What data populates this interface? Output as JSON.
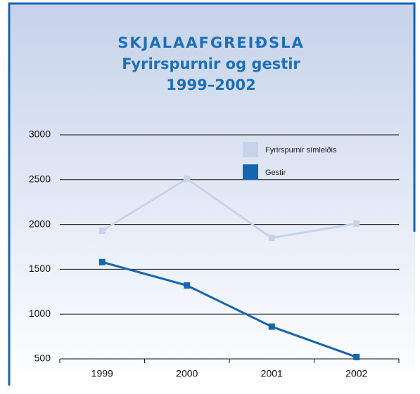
{
  "chart_data": {
    "type": "line",
    "title": [
      "SKJALAAFGREIÐSLA",
      "Fyrirspurnir og gestir",
      "1999–2002"
    ],
    "categories": [
      "1999",
      "2000",
      "2001",
      "2002"
    ],
    "series": [
      {
        "name": "Fyrirspurnir símleiðis",
        "color": "#c8d3ea",
        "values": [
          1930,
          2510,
          1850,
          2010
        ]
      },
      {
        "name": "Gestir",
        "color": "#1565b0",
        "values": [
          1580,
          1320,
          860,
          520
        ]
      }
    ],
    "ylim": [
      500,
      3000
    ],
    "yticks": [
      500,
      1000,
      1500,
      2000,
      2500,
      3000
    ],
    "grid": true,
    "legend": "top-right"
  }
}
